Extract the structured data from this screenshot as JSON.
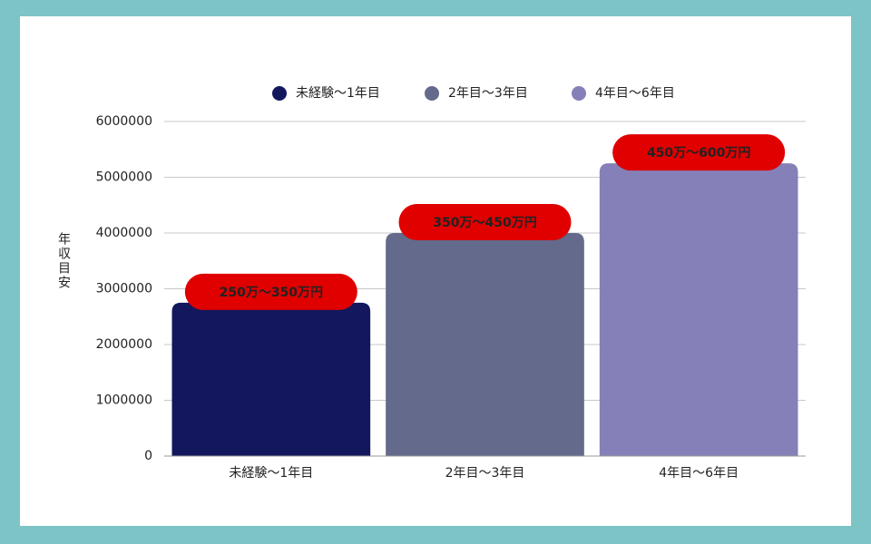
{
  "chart_data": {
    "type": "bar",
    "y_label": "年収目安",
    "categories": [
      "未経験〜1年目",
      "2年目〜3年目",
      "4年目〜6年目"
    ],
    "series": [
      {
        "name": "未経験〜1年目",
        "color": "#12175e",
        "values": [
          2750000,
          null,
          null
        ],
        "value_labels": [
          "250万〜350万円",
          null,
          null
        ]
      },
      {
        "name": "2年目〜3年目",
        "color": "#636a8b",
        "values": [
          null,
          4000000,
          null
        ],
        "value_labels": [
          null,
          "350万〜450万円",
          null
        ]
      },
      {
        "name": "4年目〜6年目",
        "color": "#8580b8",
        "values": [
          null,
          null,
          5250000
        ],
        "value_labels": [
          null,
          null,
          "450万〜600万円"
        ]
      }
    ],
    "ylim": [
      0,
      6000000
    ],
    "yticks": [
      0,
      1000000,
      2000000,
      3000000,
      4000000,
      5000000,
      6000000
    ],
    "grid": true,
    "label_color": "#e00000"
  }
}
